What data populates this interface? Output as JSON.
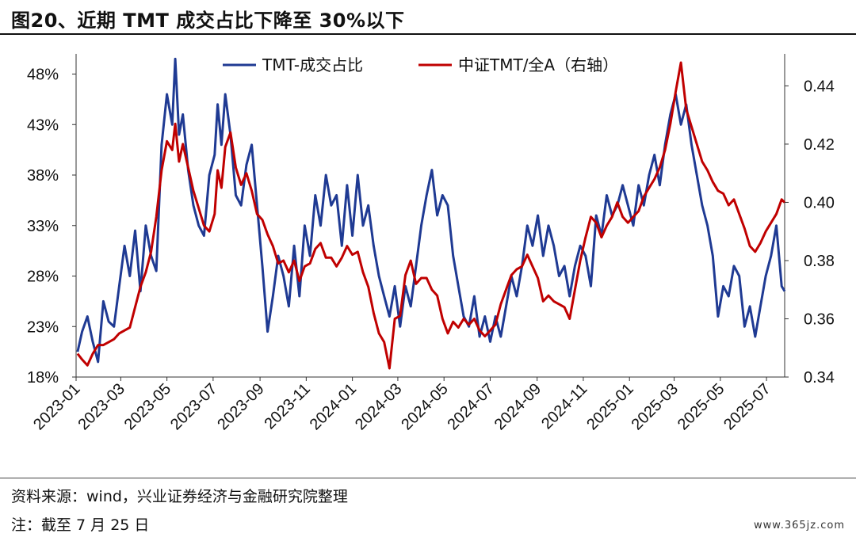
{
  "header": {
    "title": "图20、近期 TMT 成交占比下降至 30%以下"
  },
  "footer": {
    "source": "资料来源：wind，兴业证券经济与金融研究院整理",
    "note": "注：截至 7 月 25 日",
    "watermark": "www.365jz.com"
  },
  "colors": {
    "tmt": "#1f3a93",
    "ratio": "#c00000",
    "axis": "#333333"
  },
  "chart_data": {
    "type": "line",
    "grid": false,
    "legend_position": "top",
    "x_ticks": [
      "2023-01",
      "2023-03",
      "2023-05",
      "2023-07",
      "2023-09",
      "2023-11",
      "2024-01",
      "2024-03",
      "2024-05",
      "2024-07",
      "2024-09",
      "2024-11",
      "2025-01",
      "2025-03",
      "2025-05",
      "2025-07"
    ],
    "x_range": [
      "2023-01-01",
      "2025-07-25"
    ],
    "y_left": {
      "ticks": [
        "18%",
        "23%",
        "28%",
        "33%",
        "38%",
        "43%",
        "48%"
      ],
      "range": [
        18,
        50
      ]
    },
    "y_right": {
      "ticks": [
        "0.34",
        "0.36",
        "0.38",
        "0.40",
        "0.42",
        "0.44"
      ],
      "range": [
        0.34,
        0.451
      ]
    },
    "series": [
      {
        "name": "TMT-成交占比",
        "axis": "left",
        "color": "#1f3a93",
        "points": [
          [
            "2023-01-03",
            20.5
          ],
          [
            "2023-01-09",
            22.5
          ],
          [
            "2023-01-16",
            24
          ],
          [
            "2023-01-23",
            21.5
          ],
          [
            "2023-01-30",
            19.5
          ],
          [
            "2023-02-06",
            25.5
          ],
          [
            "2023-02-13",
            23.5
          ],
          [
            "2023-02-20",
            23
          ],
          [
            "2023-02-27",
            27
          ],
          [
            "2023-03-06",
            31
          ],
          [
            "2023-03-13",
            28
          ],
          [
            "2023-03-20",
            32.5
          ],
          [
            "2023-03-27",
            26.5
          ],
          [
            "2023-04-03",
            33
          ],
          [
            "2023-04-10",
            30
          ],
          [
            "2023-04-17",
            28.5
          ],
          [
            "2023-04-24",
            41
          ],
          [
            "2023-05-01",
            46
          ],
          [
            "2023-05-08",
            43
          ],
          [
            "2023-05-12",
            49.5
          ],
          [
            "2023-05-17",
            42
          ],
          [
            "2023-05-22",
            44
          ],
          [
            "2023-05-29",
            38.5
          ],
          [
            "2023-06-05",
            35
          ],
          [
            "2023-06-12",
            33
          ],
          [
            "2023-06-19",
            32
          ],
          [
            "2023-06-26",
            38
          ],
          [
            "2023-07-03",
            40
          ],
          [
            "2023-07-07",
            45
          ],
          [
            "2023-07-12",
            41
          ],
          [
            "2023-07-17",
            46
          ],
          [
            "2023-07-24",
            42
          ],
          [
            "2023-07-31",
            36
          ],
          [
            "2023-08-07",
            35
          ],
          [
            "2023-08-14",
            39
          ],
          [
            "2023-08-21",
            41
          ],
          [
            "2023-08-28",
            35
          ],
          [
            "2023-09-04",
            29
          ],
          [
            "2023-09-11",
            22.5
          ],
          [
            "2023-09-18",
            26
          ],
          [
            "2023-09-25",
            30
          ],
          [
            "2023-10-02",
            28
          ],
          [
            "2023-10-09",
            25
          ],
          [
            "2023-10-16",
            31
          ],
          [
            "2023-10-23",
            26
          ],
          [
            "2023-10-30",
            33
          ],
          [
            "2023-11-06",
            30
          ],
          [
            "2023-11-13",
            36
          ],
          [
            "2023-11-20",
            33
          ],
          [
            "2023-11-27",
            38
          ],
          [
            "2023-12-04",
            35
          ],
          [
            "2023-12-11",
            36
          ],
          [
            "2023-12-18",
            31
          ],
          [
            "2023-12-25",
            37
          ],
          [
            "2024-01-01",
            32
          ],
          [
            "2024-01-08",
            38
          ],
          [
            "2024-01-15",
            33
          ],
          [
            "2024-01-22",
            35
          ],
          [
            "2024-01-29",
            31
          ],
          [
            "2024-02-05",
            28
          ],
          [
            "2024-02-12",
            26
          ],
          [
            "2024-02-19",
            24
          ],
          [
            "2024-02-26",
            27
          ],
          [
            "2024-03-04",
            23
          ],
          [
            "2024-03-11",
            27
          ],
          [
            "2024-03-18",
            25
          ],
          [
            "2024-03-25",
            29
          ],
          [
            "2024-04-01",
            33
          ],
          [
            "2024-04-08",
            36
          ],
          [
            "2024-04-15",
            38.5
          ],
          [
            "2024-04-22",
            34
          ],
          [
            "2024-04-29",
            36
          ],
          [
            "2024-05-06",
            35
          ],
          [
            "2024-05-13",
            30
          ],
          [
            "2024-05-20",
            27
          ],
          [
            "2024-05-27",
            24
          ],
          [
            "2024-06-03",
            23
          ],
          [
            "2024-06-10",
            26
          ],
          [
            "2024-06-17",
            22
          ],
          [
            "2024-06-24",
            24
          ],
          [
            "2024-07-01",
            21.5
          ],
          [
            "2024-07-08",
            24
          ],
          [
            "2024-07-15",
            22
          ],
          [
            "2024-07-22",
            25
          ],
          [
            "2024-07-29",
            28
          ],
          [
            "2024-08-05",
            26
          ],
          [
            "2024-08-12",
            29
          ],
          [
            "2024-08-19",
            33
          ],
          [
            "2024-08-26",
            31
          ],
          [
            "2024-09-02",
            34
          ],
          [
            "2024-09-09",
            30
          ],
          [
            "2024-09-16",
            33
          ],
          [
            "2024-09-23",
            31
          ],
          [
            "2024-09-30",
            28
          ],
          [
            "2024-10-07",
            29
          ],
          [
            "2024-10-14",
            26
          ],
          [
            "2024-10-21",
            29
          ],
          [
            "2024-10-28",
            31
          ],
          [
            "2024-11-04",
            30
          ],
          [
            "2024-11-11",
            27
          ],
          [
            "2024-11-18",
            34
          ],
          [
            "2024-11-25",
            32
          ],
          [
            "2024-12-02",
            36
          ],
          [
            "2024-12-09",
            34
          ],
          [
            "2024-12-16",
            35
          ],
          [
            "2024-12-23",
            37
          ],
          [
            "2024-12-30",
            35
          ],
          [
            "2025-01-06",
            33
          ],
          [
            "2025-01-13",
            37
          ],
          [
            "2025-01-20",
            35
          ],
          [
            "2025-01-27",
            38
          ],
          [
            "2025-02-03",
            40
          ],
          [
            "2025-02-10",
            37
          ],
          [
            "2025-02-17",
            41
          ],
          [
            "2025-02-24",
            44
          ],
          [
            "2025-03-03",
            46
          ],
          [
            "2025-03-10",
            43
          ],
          [
            "2025-03-17",
            45
          ],
          [
            "2025-03-24",
            41
          ],
          [
            "2025-03-31",
            38
          ],
          [
            "2025-04-07",
            35
          ],
          [
            "2025-04-14",
            33
          ],
          [
            "2025-04-21",
            30
          ],
          [
            "2025-04-28",
            24
          ],
          [
            "2025-05-05",
            27
          ],
          [
            "2025-05-12",
            26
          ],
          [
            "2025-05-19",
            29
          ],
          [
            "2025-05-26",
            28
          ],
          [
            "2025-06-02",
            23
          ],
          [
            "2025-06-09",
            25
          ],
          [
            "2025-06-16",
            22
          ],
          [
            "2025-06-23",
            25
          ],
          [
            "2025-06-30",
            28
          ],
          [
            "2025-07-07",
            30
          ],
          [
            "2025-07-14",
            33
          ],
          [
            "2025-07-21",
            27
          ],
          [
            "2025-07-25",
            26.5
          ]
        ]
      },
      {
        "name": "中证TMT/全A（右轴）",
        "axis": "right",
        "color": "#c00000",
        "points": [
          [
            "2023-01-03",
            0.348
          ],
          [
            "2023-01-09",
            0.346
          ],
          [
            "2023-01-16",
            0.344
          ],
          [
            "2023-01-23",
            0.348
          ],
          [
            "2023-01-30",
            0.351
          ],
          [
            "2023-02-06",
            0.351
          ],
          [
            "2023-02-13",
            0.352
          ],
          [
            "2023-02-20",
            0.353
          ],
          [
            "2023-02-27",
            0.355
          ],
          [
            "2023-03-06",
            0.356
          ],
          [
            "2023-03-13",
            0.357
          ],
          [
            "2023-03-20",
            0.364
          ],
          [
            "2023-03-27",
            0.371
          ],
          [
            "2023-04-03",
            0.376
          ],
          [
            "2023-04-10",
            0.383
          ],
          [
            "2023-04-17",
            0.395
          ],
          [
            "2023-04-24",
            0.411
          ],
          [
            "2023-05-01",
            0.421
          ],
          [
            "2023-05-08",
            0.418
          ],
          [
            "2023-05-12",
            0.427
          ],
          [
            "2023-05-17",
            0.414
          ],
          [
            "2023-05-22",
            0.42
          ],
          [
            "2023-05-29",
            0.412
          ],
          [
            "2023-06-05",
            0.404
          ],
          [
            "2023-06-12",
            0.398
          ],
          [
            "2023-06-19",
            0.392
          ],
          [
            "2023-06-26",
            0.39
          ],
          [
            "2023-07-03",
            0.396
          ],
          [
            "2023-07-07",
            0.411
          ],
          [
            "2023-07-12",
            0.405
          ],
          [
            "2023-07-17",
            0.419
          ],
          [
            "2023-07-24",
            0.424
          ],
          [
            "2023-07-31",
            0.412
          ],
          [
            "2023-08-07",
            0.406
          ],
          [
            "2023-08-14",
            0.41
          ],
          [
            "2023-08-21",
            0.404
          ],
          [
            "2023-08-28",
            0.396
          ],
          [
            "2023-09-04",
            0.394
          ],
          [
            "2023-09-11",
            0.389
          ],
          [
            "2023-09-18",
            0.385
          ],
          [
            "2023-09-25",
            0.379
          ],
          [
            "2023-10-02",
            0.38
          ],
          [
            "2023-10-09",
            0.376
          ],
          [
            "2023-10-16",
            0.38
          ],
          [
            "2023-10-23",
            0.373
          ],
          [
            "2023-10-30",
            0.378
          ],
          [
            "2023-11-06",
            0.379
          ],
          [
            "2023-11-13",
            0.384
          ],
          [
            "2023-11-20",
            0.386
          ],
          [
            "2023-11-27",
            0.381
          ],
          [
            "2023-12-04",
            0.381
          ],
          [
            "2023-12-11",
            0.378
          ],
          [
            "2023-12-18",
            0.381
          ],
          [
            "2023-12-25",
            0.385
          ],
          [
            "2024-01-01",
            0.382
          ],
          [
            "2024-01-08",
            0.383
          ],
          [
            "2024-01-15",
            0.376
          ],
          [
            "2024-01-22",
            0.371
          ],
          [
            "2024-01-29",
            0.362
          ],
          [
            "2024-02-05",
            0.355
          ],
          [
            "2024-02-12",
            0.352
          ],
          [
            "2024-02-19",
            0.343
          ],
          [
            "2024-02-26",
            0.36
          ],
          [
            "2024-03-04",
            0.361
          ],
          [
            "2024-03-11",
            0.375
          ],
          [
            "2024-03-18",
            0.38
          ],
          [
            "2024-03-25",
            0.372
          ],
          [
            "2024-04-01",
            0.374
          ],
          [
            "2024-04-08",
            0.374
          ],
          [
            "2024-04-15",
            0.37
          ],
          [
            "2024-04-22",
            0.368
          ],
          [
            "2024-04-29",
            0.36
          ],
          [
            "2024-05-06",
            0.355
          ],
          [
            "2024-05-13",
            0.359
          ],
          [
            "2024-05-20",
            0.357
          ],
          [
            "2024-05-27",
            0.36
          ],
          [
            "2024-06-03",
            0.358
          ],
          [
            "2024-06-10",
            0.36
          ],
          [
            "2024-06-17",
            0.356
          ],
          [
            "2024-06-24",
            0.354
          ],
          [
            "2024-07-01",
            0.356
          ],
          [
            "2024-07-08",
            0.358
          ],
          [
            "2024-07-15",
            0.365
          ],
          [
            "2024-07-22",
            0.37
          ],
          [
            "2024-07-29",
            0.375
          ],
          [
            "2024-08-05",
            0.377
          ],
          [
            "2024-08-12",
            0.378
          ],
          [
            "2024-08-19",
            0.382
          ],
          [
            "2024-08-26",
            0.378
          ],
          [
            "2024-09-02",
            0.374
          ],
          [
            "2024-09-09",
            0.366
          ],
          [
            "2024-09-16",
            0.368
          ],
          [
            "2024-09-23",
            0.366
          ],
          [
            "2024-09-30",
            0.365
          ],
          [
            "2024-10-07",
            0.364
          ],
          [
            "2024-10-14",
            0.36
          ],
          [
            "2024-10-21",
            0.37
          ],
          [
            "2024-10-28",
            0.38
          ],
          [
            "2024-11-04",
            0.388
          ],
          [
            "2024-11-11",
            0.395
          ],
          [
            "2024-11-18",
            0.393
          ],
          [
            "2024-11-25",
            0.388
          ],
          [
            "2024-12-02",
            0.392
          ],
          [
            "2024-12-09",
            0.395
          ],
          [
            "2024-12-16",
            0.4
          ],
          [
            "2024-12-23",
            0.395
          ],
          [
            "2024-12-30",
            0.393
          ],
          [
            "2025-01-06",
            0.395
          ],
          [
            "2025-01-13",
            0.397
          ],
          [
            "2025-01-20",
            0.402
          ],
          [
            "2025-01-27",
            0.405
          ],
          [
            "2025-02-03",
            0.408
          ],
          [
            "2025-02-10",
            0.412
          ],
          [
            "2025-02-17",
            0.418
          ],
          [
            "2025-02-24",
            0.427
          ],
          [
            "2025-03-03",
            0.438
          ],
          [
            "2025-03-10",
            0.448
          ],
          [
            "2025-03-17",
            0.432
          ],
          [
            "2025-03-24",
            0.426
          ],
          [
            "2025-03-31",
            0.42
          ],
          [
            "2025-04-07",
            0.414
          ],
          [
            "2025-04-14",
            0.411
          ],
          [
            "2025-04-21",
            0.407
          ],
          [
            "2025-04-28",
            0.404
          ],
          [
            "2025-05-05",
            0.403
          ],
          [
            "2025-05-12",
            0.399
          ],
          [
            "2025-05-19",
            0.401
          ],
          [
            "2025-05-26",
            0.396
          ],
          [
            "2025-06-02",
            0.391
          ],
          [
            "2025-06-09",
            0.385
          ],
          [
            "2025-06-16",
            0.383
          ],
          [
            "2025-06-23",
            0.386
          ],
          [
            "2025-06-30",
            0.39
          ],
          [
            "2025-07-07",
            0.393
          ],
          [
            "2025-07-14",
            0.396
          ],
          [
            "2025-07-21",
            0.401
          ],
          [
            "2025-07-25",
            0.4
          ]
        ]
      }
    ]
  }
}
